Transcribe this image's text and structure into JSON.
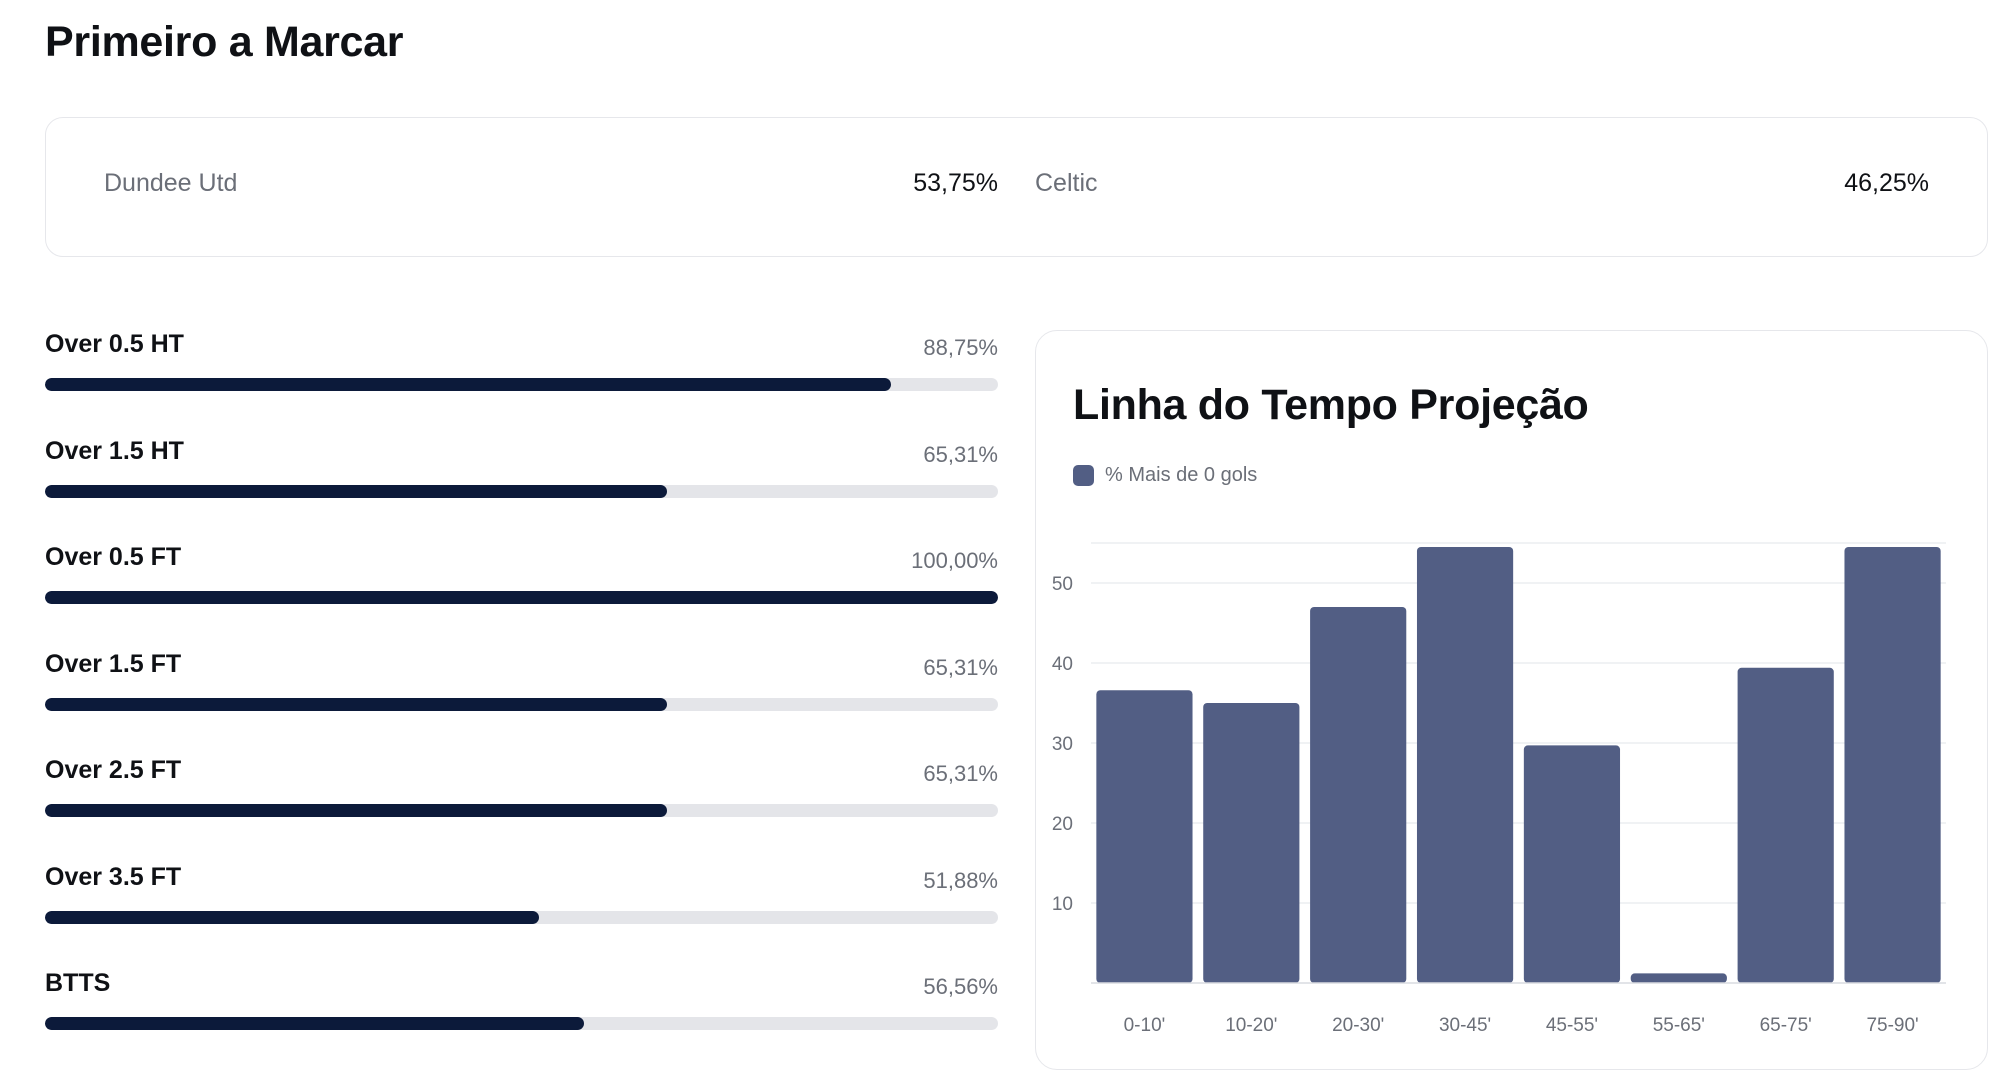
{
  "page": {
    "title": "Primeiro a Marcar"
  },
  "first_to_score": {
    "home": {
      "team": "Dundee Utd",
      "value": "53,75%"
    },
    "away": {
      "team": "Celtic",
      "value": "46,25%"
    }
  },
  "markets": [
    {
      "label": "Over 0.5 HT",
      "value": "88,75%",
      "fill": 0.8875
    },
    {
      "label": "Over 1.5 HT",
      "value": "65,31%",
      "fill": 0.6531
    },
    {
      "label": "Over 0.5 FT",
      "value": "100,00%",
      "fill": 1.0
    },
    {
      "label": "Over 1.5 FT",
      "value": "65,31%",
      "fill": 0.6531
    },
    {
      "label": "Over 2.5 FT",
      "value": "65,31%",
      "fill": 0.6531
    },
    {
      "label": "Over 3.5 FT",
      "value": "51,88%",
      "fill": 0.5188
    },
    {
      "label": "BTTS",
      "value": "56,56%",
      "fill": 0.5656
    }
  ],
  "colors": {
    "bar_fill": "#0c1a3a",
    "bar_track": "#e4e5e9",
    "chart_bar": "#525e84"
  },
  "chart": {
    "title": "Linha do Tempo Projeção",
    "legend_label": "% Mais de 0 gols"
  },
  "chart_data": {
    "type": "bar",
    "title": "Linha do Tempo Projeção",
    "categories": [
      "0-10'",
      "10-20'",
      "20-30'",
      "30-45'",
      "45-55'",
      "55-65'",
      "65-75'",
      "75-90'"
    ],
    "series": [
      {
        "name": "% Mais de 0 gols",
        "values": [
          36.6,
          35.0,
          47.0,
          54.5,
          29.7,
          1.2,
          39.4,
          54.5
        ]
      }
    ],
    "yticks": [
      10,
      20,
      30,
      40,
      50
    ],
    "ylim": [
      0,
      55
    ],
    "grid": true,
    "legend_position": "top-left"
  }
}
